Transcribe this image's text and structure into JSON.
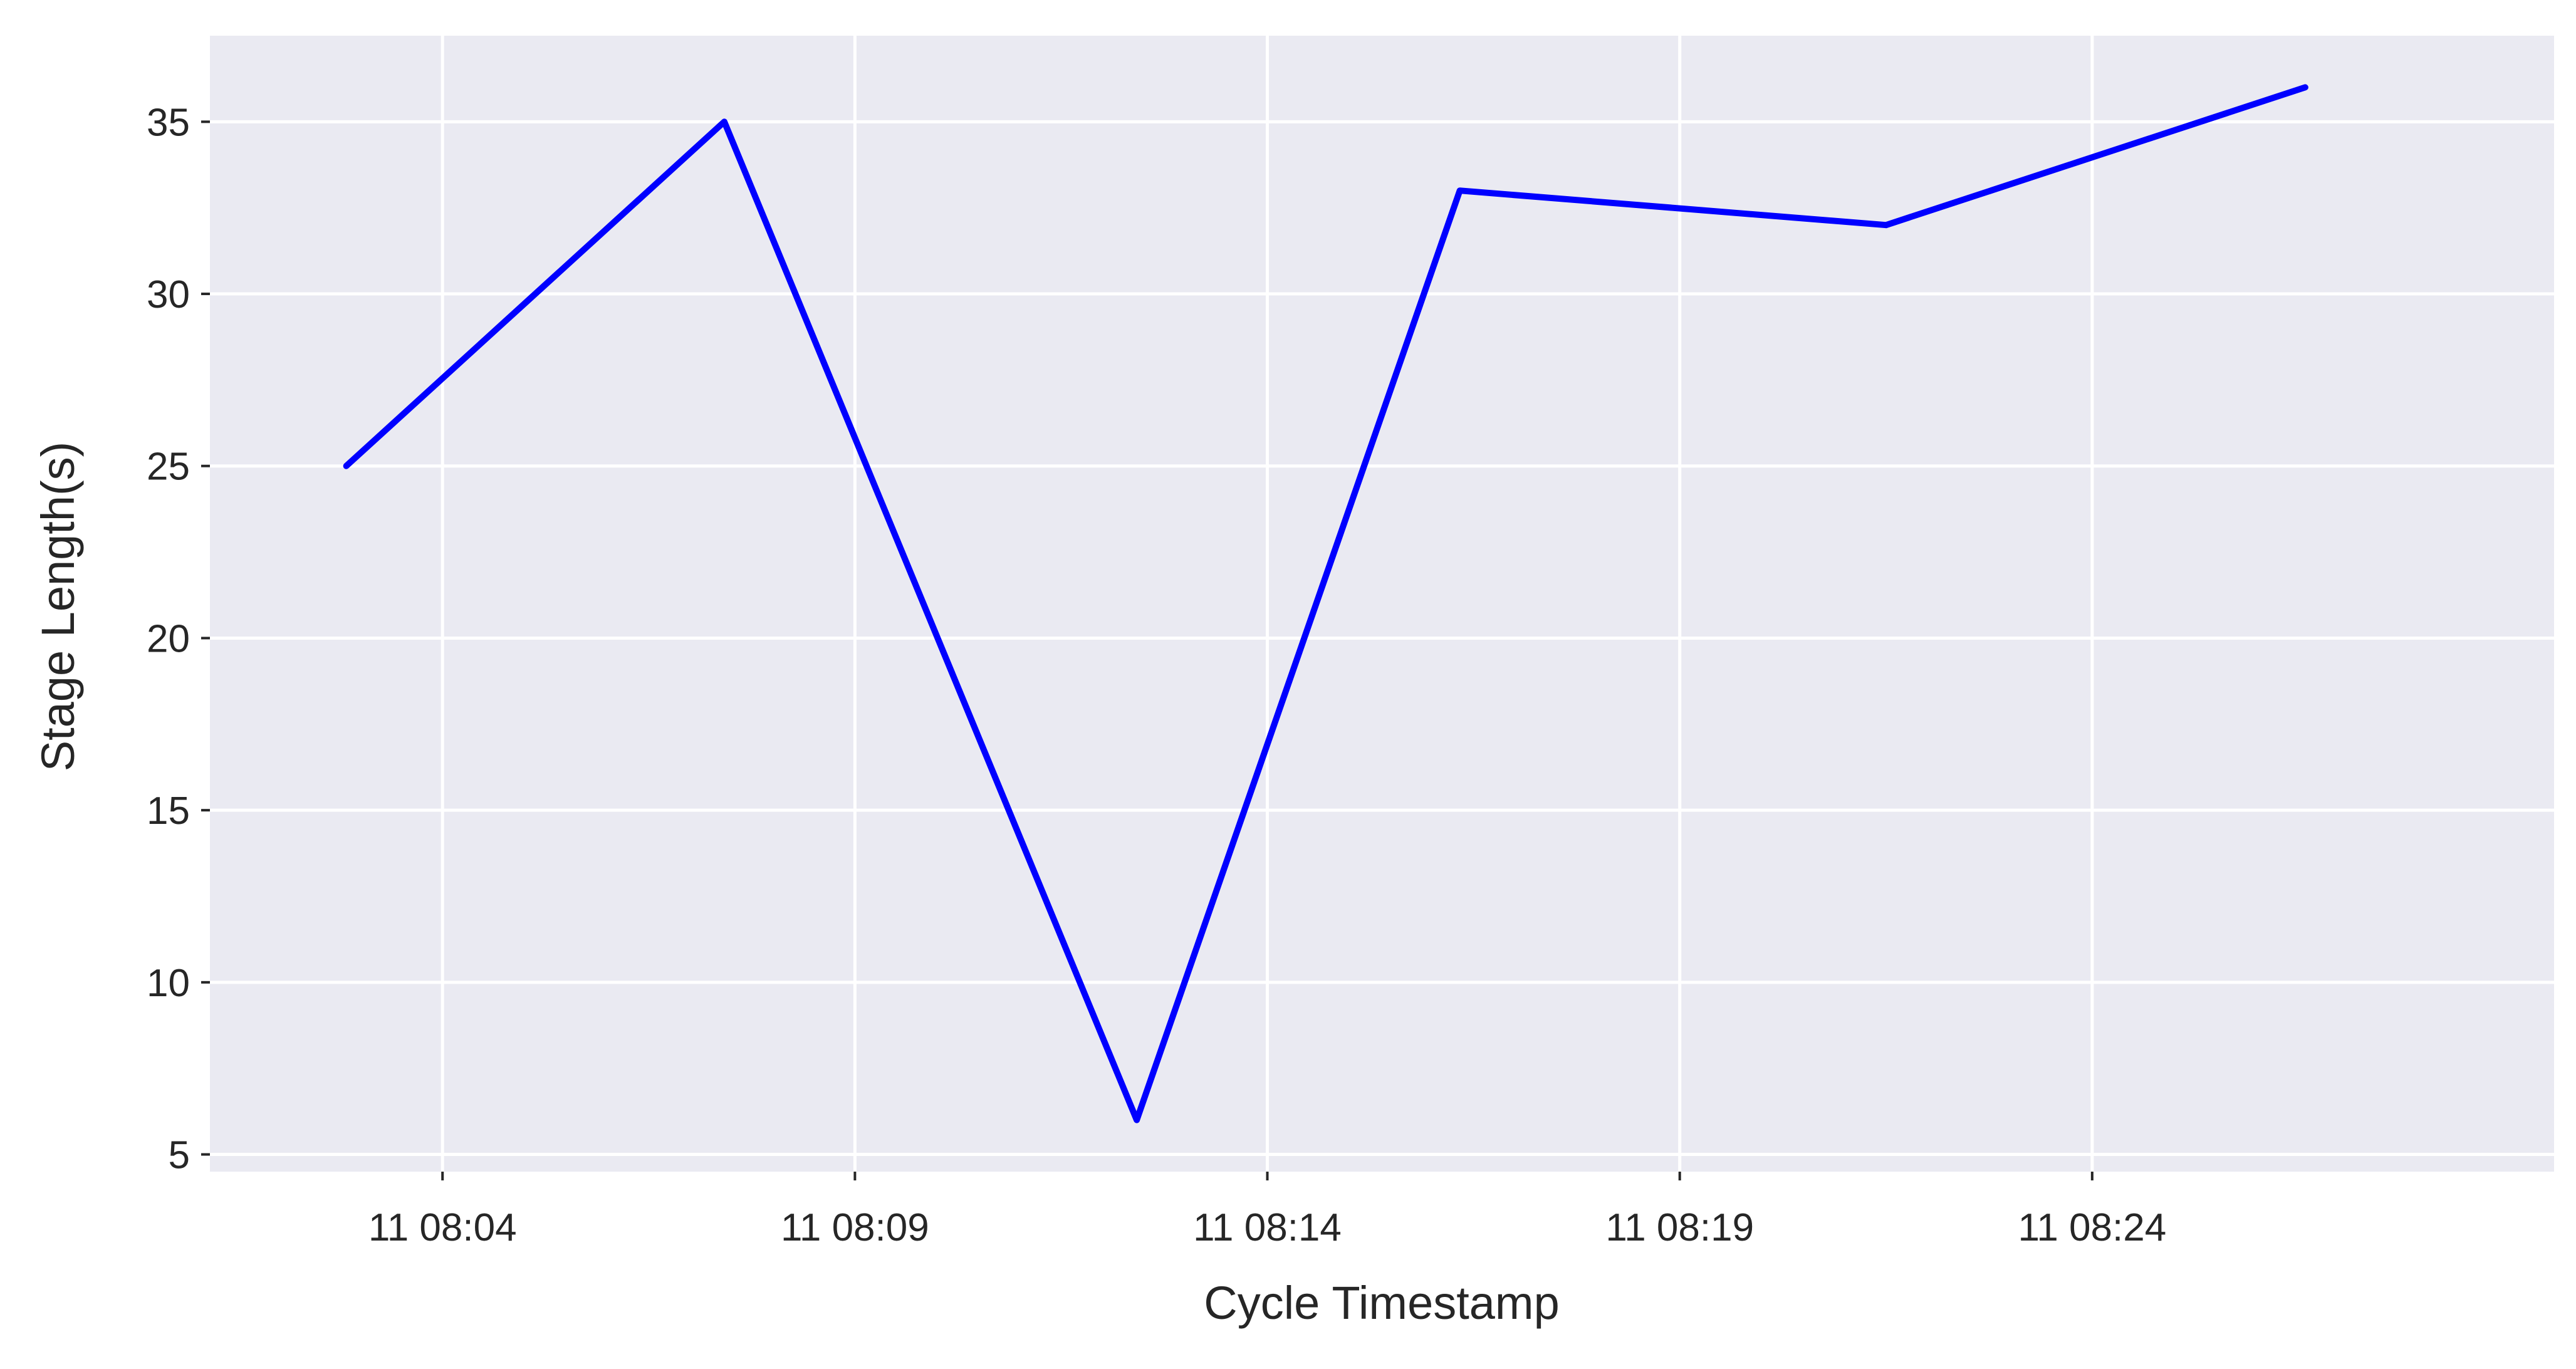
{
  "chart_data": {
    "type": "line",
    "title": "",
    "xlabel": "Cycle Timestamp",
    "ylabel": "Stage Length(s)",
    "x_tick_labels": [
      "11 08:04",
      "11 08:09",
      "11 08:14",
      "11 08:19",
      "11 08:24"
    ],
    "y_ticks": [
      5,
      10,
      15,
      20,
      25,
      30,
      35
    ],
    "ylim": [
      4.5,
      37.5
    ],
    "grid": true,
    "background_color": "#eaeaf2",
    "series": [
      {
        "color": "#0000ff",
        "x": [
          "08:02:50",
          "08:07:25",
          "08:12:25",
          "08:16:20",
          "08:21:30",
          "08:26:35"
        ],
        "y": [
          25,
          35,
          6,
          33,
          32,
          36
        ]
      }
    ]
  }
}
